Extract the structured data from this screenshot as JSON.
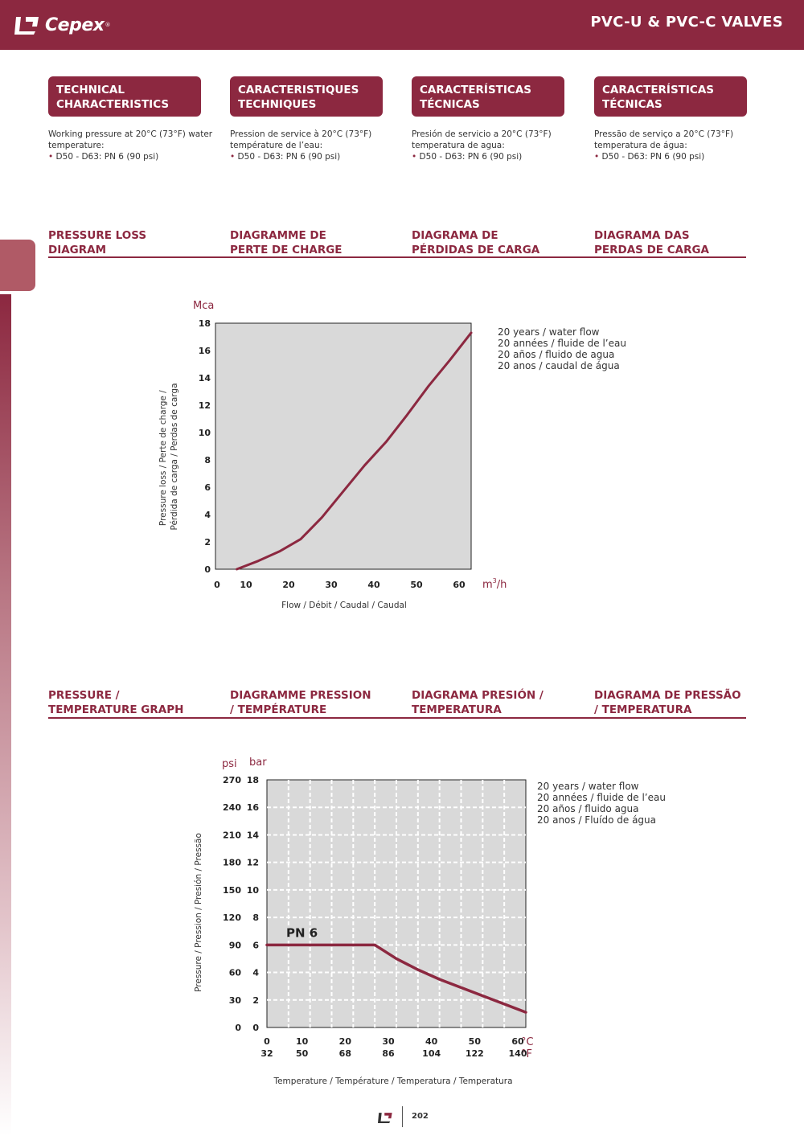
{
  "header": {
    "logo_text": "Cepex",
    "title": "PVC-U & PVC-C VALVES"
  },
  "characteristics": [
    {
      "title": "TECHNICAL\nCHARACTERISTICS",
      "line1": "Working pressure at 20°C (73°F) water",
      "line2": "temperature:",
      "bullet": "D50 - D63:  PN 6 (90 psi)"
    },
    {
      "title": "CARACTERISTIQUES\nTECHNIQUES",
      "line1": "Pression de service à 20°C (73°F)",
      "line2": "température de l’eau:",
      "bullet": "D50 - D63:  PN 6 (90 psi)"
    },
    {
      "title": "CARACTERÍSTICAS\nTÉCNICAS",
      "line1": "Presión de servicio a 20°C (73°F)",
      "line2": "temperatura de agua:",
      "bullet": "D50 - D63:  PN 6 (90 psi)"
    },
    {
      "title": "CARACTERÍSTICAS\nTÉCNICAS",
      "line1": "Pressão de serviço a 20°C (73°F)",
      "line2": "temperatura de água:",
      "bullet": "D50 - D63:  PN 6 (90 psi)"
    }
  ],
  "pressure_loss": {
    "headings": [
      "PRESSURE LOSS\nDIAGRAM",
      "DIAGRAMME DE\nPERTE DE CHARGE",
      "DIAGRAMA DE\nPÉRDIDAS DE CARGA",
      "DIAGRAMA DAS\nPERDAS DE CARGA"
    ],
    "legend": "20 years / water flow\n20 années / fluide de l’eau\n20 años / fluido de agua\n20 anos / caudal de água"
  },
  "pressure_temp": {
    "headings": [
      "PRESSURE /\nTEMPERATURE GRAPH",
      "DIAGRAMME PRESSION\n/ TEMPÉRATURE",
      "DIAGRAMA PRESIÓN /\nTEMPERATURA",
      "DIAGRAMA DE PRESSÃO\n/ TEMPERATURA"
    ],
    "legend": "20 years / water flow\n20 années / fluide de l’eau\n20 años / fluido agua\n20 anos / Fluído de água"
  },
  "footer": {
    "page": "202"
  },
  "colors": {
    "brand": "#8c2840",
    "plot_bg": "#d9d9d9"
  },
  "chart_data": [
    {
      "type": "line",
      "x": [
        5,
        10,
        15,
        20,
        25,
        30,
        35,
        40,
        45,
        50,
        55,
        60
      ],
      "y": [
        0,
        0.6,
        1.3,
        2.2,
        3.8,
        5.7,
        7.6,
        9.3,
        11.3,
        13.4,
        15.3,
        17.3
      ],
      "xlabel": "Flow / Débit / Caudal / Caudal",
      "ylabel": "Pressure loss / Perte de charge /\nPérdida de carga / Perdas de carga",
      "y_unit": "Mca",
      "x_unit": "m3/h",
      "xlim": [
        0,
        60
      ],
      "ylim": [
        0,
        18
      ],
      "x_ticks": [
        0,
        10,
        20,
        30,
        40,
        50,
        60
      ],
      "y_ticks": [
        0,
        2,
        4,
        6,
        8,
        10,
        12,
        14,
        16,
        18
      ],
      "grid": false
    },
    {
      "type": "line",
      "series": [
        {
          "name": "PN 6",
          "x": [
            0,
            25,
            30,
            35,
            40,
            45,
            50,
            55,
            60
          ],
          "y": [
            6,
            6,
            5,
            4.2,
            3.5,
            2.9,
            2.3,
            1.7,
            1.1
          ]
        }
      ],
      "xlabel": "Temperature / Température / Temperatura / Temperatura",
      "ylabel": "Pressure / Pression / Presión / Pressão",
      "xlim": [
        0,
        60
      ],
      "ylim": [
        0,
        18
      ],
      "x_ticks_c": [
        0,
        10,
        20,
        30,
        40,
        50,
        60
      ],
      "x_ticks_f": [
        32,
        50,
        68,
        86,
        104,
        122,
        140
      ],
      "y_ticks_bar": [
        0,
        2,
        4,
        6,
        8,
        10,
        12,
        14,
        16,
        18
      ],
      "y_ticks_psi": [
        0,
        30,
        60,
        90,
        120,
        150,
        180,
        210,
        240,
        270
      ],
      "y_unit_bar": "bar",
      "y_unit_psi": "psi",
      "x_unit_c": "°C",
      "x_unit_f": "°F",
      "grid": true
    }
  ]
}
